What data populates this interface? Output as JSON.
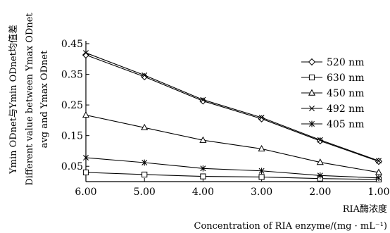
{
  "chart_data": {
    "type": "line",
    "x": [
      6.0,
      5.0,
      4.0,
      3.0,
      2.0,
      1.0
    ],
    "x_tick_labels": [
      "6.00",
      "5.00",
      "4.00",
      "3.00",
      "2.00",
      "1.00"
    ],
    "y_tick_values": [
      0.05,
      0.15,
      0.25,
      0.35,
      0.45
    ],
    "y_tick_labels": [
      "0.05",
      "0.15",
      "0.25",
      "0.35",
      "0.45"
    ],
    "xlim": [
      6.0,
      1.0
    ],
    "ylim": [
      0.0,
      0.45
    ],
    "xlabel_lines": [
      "RIA酶浓度",
      "Concentration of RIA enzyme/(mg · mL⁻¹)"
    ],
    "ylabel_lines": [
      "Ymin ODnet与Ymin ODnet均值差",
      "Different value between Ymax ODnet",
      "avg and Ymax ODnet"
    ],
    "legend_position": "right",
    "series": [
      {
        "name": "520 nm",
        "marker": "diamond",
        "values": [
          0.413,
          0.342,
          0.263,
          0.205,
          0.133,
          0.066
        ]
      },
      {
        "name": "630 nm",
        "marker": "square",
        "values": [
          0.03,
          0.023,
          0.017,
          0.015,
          0.01,
          0.007
        ]
      },
      {
        "name": "450 nm",
        "marker": "triangle",
        "values": [
          0.217,
          0.176,
          0.135,
          0.107,
          0.063,
          0.03
        ]
      },
      {
        "name": "492 nm",
        "marker": "x",
        "values": [
          0.42,
          0.347,
          0.267,
          0.209,
          0.136,
          0.068
        ]
      },
      {
        "name": "405 nm",
        "marker": "star",
        "values": [
          0.078,
          0.062,
          0.043,
          0.035,
          0.02,
          0.012
        ]
      }
    ]
  }
}
